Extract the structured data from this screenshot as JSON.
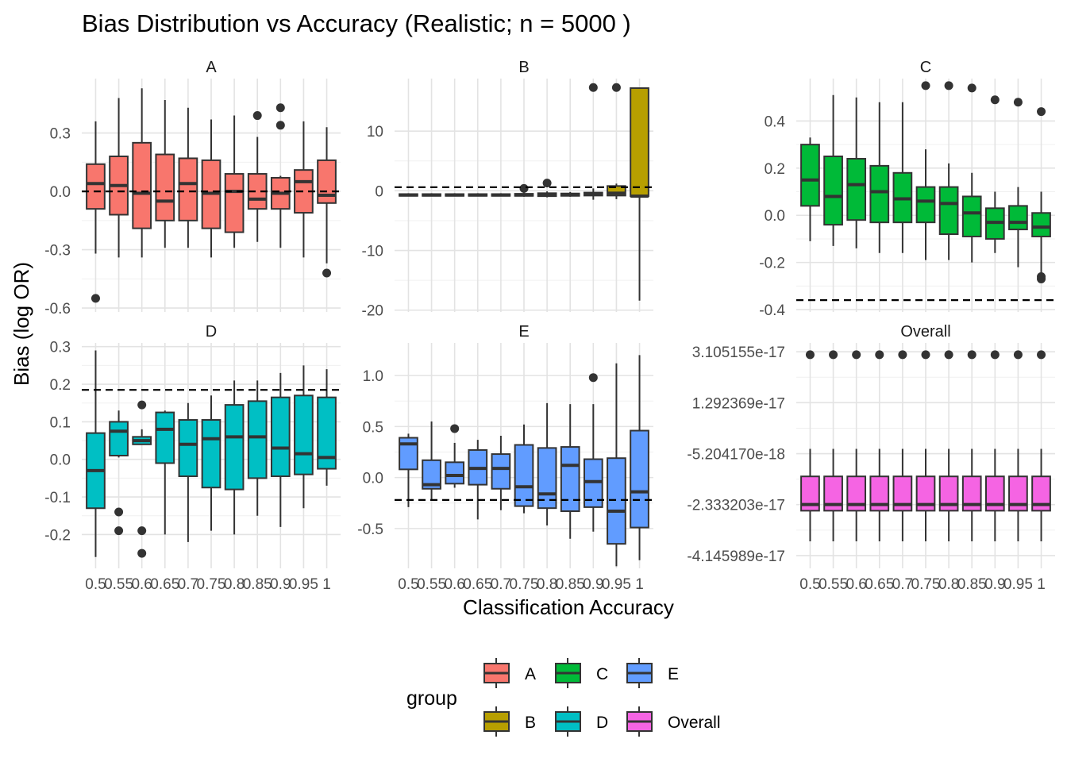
{
  "chart_data": {
    "type": "box",
    "title": "Bias Distribution vs Accuracy (Realistic; n = 5000 )",
    "xlabel": "Classification Accuracy",
    "ylabel": "Bias (log OR)",
    "x_categories": [
      "0.5",
      "0.55",
      "0.6",
      "0.65",
      "0.7",
      "0.75",
      "0.8",
      "0.85",
      "0.9",
      "0.95",
      "1"
    ],
    "legend": {
      "title": "group",
      "placement": "bottom",
      "items": [
        {
          "label": "A",
          "color": "#F8766D"
        },
        {
          "label": "C",
          "color": "#00BA38"
        },
        {
          "label": "E",
          "color": "#619CFF"
        },
        {
          "label": "B",
          "color": "#B79F00"
        },
        {
          "label": "D",
          "color": "#00BFC4"
        },
        {
          "label": "Overall",
          "color": "#F564E3"
        }
      ]
    },
    "panels": [
      {
        "label": "A",
        "color": "#F8766D",
        "ylim": [
          -0.62,
          0.58
        ],
        "yticks": [
          {
            "v": -0.6,
            "label": "-0.6"
          },
          {
            "v": -0.3,
            "label": "-0.3"
          },
          {
            "v": 0.0,
            "label": "0.0"
          },
          {
            "v": 0.3,
            "label": "0.3"
          }
        ],
        "hline": 0.0,
        "boxes": [
          {
            "min": -0.32,
            "q1": -0.09,
            "med": 0.04,
            "q3": 0.14,
            "max": 0.36,
            "out": [
              -0.55
            ]
          },
          {
            "min": -0.34,
            "q1": -0.12,
            "med": 0.03,
            "q3": 0.18,
            "max": 0.48,
            "out": []
          },
          {
            "min": -0.34,
            "q1": -0.19,
            "med": -0.01,
            "q3": 0.25,
            "max": 0.53,
            "out": []
          },
          {
            "min": -0.29,
            "q1": -0.15,
            "med": -0.05,
            "q3": 0.19,
            "max": 0.47,
            "out": []
          },
          {
            "min": -0.29,
            "q1": -0.15,
            "med": 0.04,
            "q3": 0.17,
            "max": 0.43,
            "out": []
          },
          {
            "min": -0.34,
            "q1": -0.19,
            "med": -0.01,
            "q3": 0.16,
            "max": 0.37,
            "out": []
          },
          {
            "min": -0.29,
            "q1": -0.21,
            "med": 0.0,
            "q3": 0.09,
            "max": 0.39,
            "out": []
          },
          {
            "min": -0.26,
            "q1": -0.09,
            "med": -0.04,
            "q3": 0.09,
            "max": 0.28,
            "out": [
              0.39
            ]
          },
          {
            "min": -0.29,
            "q1": -0.09,
            "med": -0.01,
            "q3": 0.07,
            "max": 0.08,
            "out": [
              0.43,
              0.34
            ]
          },
          {
            "min": -0.34,
            "q1": -0.11,
            "med": 0.05,
            "q3": 0.11,
            "max": 0.36,
            "out": []
          },
          {
            "min": -0.37,
            "q1": -0.06,
            "med": -0.02,
            "q3": 0.16,
            "max": 0.33,
            "out": [
              -0.42
            ]
          }
        ]
      },
      {
        "label": "B",
        "color": "#B79F00",
        "ylim": [
          -20.3,
          18.8
        ],
        "yticks": [
          {
            "v": -20,
            "label": "-20"
          },
          {
            "v": -10,
            "label": "-10"
          },
          {
            "v": 0,
            "label": "0"
          },
          {
            "v": 10,
            "label": "10"
          }
        ],
        "hline": 0.6,
        "boxes": [
          {
            "min": -0.9,
            "q1": -0.85,
            "med": -0.7,
            "q3": -0.55,
            "max": -0.4,
            "out": []
          },
          {
            "min": -0.9,
            "q1": -0.85,
            "med": -0.7,
            "q3": -0.55,
            "max": -0.4,
            "out": []
          },
          {
            "min": -0.9,
            "q1": -0.85,
            "med": -0.7,
            "q3": -0.55,
            "max": -0.4,
            "out": []
          },
          {
            "min": -0.9,
            "q1": -0.85,
            "med": -0.7,
            "q3": -0.55,
            "max": -0.4,
            "out": []
          },
          {
            "min": -0.9,
            "q1": -0.85,
            "med": -0.7,
            "q3": -0.55,
            "max": -0.4,
            "out": []
          },
          {
            "min": -1.0,
            "q1": -0.85,
            "med": -0.7,
            "q3": -0.5,
            "max": -0.3,
            "out": [
              0.4
            ]
          },
          {
            "min": -1.1,
            "q1": -0.9,
            "med": -0.65,
            "q3": -0.4,
            "max": -0.1,
            "out": [
              1.3
            ]
          },
          {
            "min": -1.0,
            "q1": -0.85,
            "med": -0.65,
            "q3": -0.45,
            "max": -0.2,
            "out": []
          },
          {
            "min": -1.5,
            "q1": -0.8,
            "med": -0.55,
            "q3": -0.3,
            "max": 0.4,
            "out": [
              17.3
            ]
          },
          {
            "min": -1.4,
            "q1": -0.8,
            "med": -0.4,
            "q3": 0.8,
            "max": 1.2,
            "out": [
              17.3
            ]
          },
          {
            "min": -18.4,
            "q1": -0.9,
            "med": -0.9,
            "q3": 17.2,
            "max": 17.2,
            "out": []
          }
        ]
      },
      {
        "label": "C",
        "color": "#00BA38",
        "ylim": [
          -0.41,
          0.58
        ],
        "yticks": [
          {
            "v": -0.4,
            "label": "-0.4"
          },
          {
            "v": -0.2,
            "label": "-0.2"
          },
          {
            "v": 0.0,
            "label": "0.0"
          },
          {
            "v": 0.2,
            "label": "0.2"
          },
          {
            "v": 0.4,
            "label": "0.4"
          }
        ],
        "hline": -0.36,
        "boxes": [
          {
            "min": -0.11,
            "q1": 0.04,
            "med": 0.15,
            "q3": 0.3,
            "max": 0.33,
            "out": []
          },
          {
            "min": -0.13,
            "q1": -0.04,
            "med": 0.08,
            "q3": 0.25,
            "max": 0.51,
            "out": []
          },
          {
            "min": -0.14,
            "q1": -0.02,
            "med": 0.13,
            "q3": 0.24,
            "max": 0.5,
            "out": []
          },
          {
            "min": -0.16,
            "q1": -0.03,
            "med": 0.1,
            "q3": 0.21,
            "max": 0.48,
            "out": []
          },
          {
            "min": -0.16,
            "q1": -0.03,
            "med": 0.07,
            "q3": 0.18,
            "max": 0.48,
            "out": []
          },
          {
            "min": -0.19,
            "q1": -0.03,
            "med": 0.06,
            "q3": 0.12,
            "max": 0.28,
            "out": [
              0.55
            ]
          },
          {
            "min": -0.19,
            "q1": -0.08,
            "med": 0.05,
            "q3": 0.12,
            "max": 0.22,
            "out": [
              0.55
            ]
          },
          {
            "min": -0.2,
            "q1": -0.09,
            "med": 0.01,
            "q3": 0.08,
            "max": 0.18,
            "out": [
              0.54
            ]
          },
          {
            "min": -0.16,
            "q1": -0.1,
            "med": -0.03,
            "q3": 0.03,
            "max": 0.1,
            "out": [
              0.49
            ]
          },
          {
            "min": -0.22,
            "q1": -0.06,
            "med": -0.03,
            "q3": 0.04,
            "max": 0.12,
            "out": [
              0.48
            ]
          },
          {
            "min": -0.25,
            "q1": -0.09,
            "med": -0.05,
            "q3": 0.01,
            "max": 0.1,
            "out": [
              0.44,
              -0.26,
              -0.27
            ]
          }
        ]
      },
      {
        "label": "D",
        "color": "#00BFC4",
        "ylim": [
          -0.29,
          0.31
        ],
        "yticks": [
          {
            "v": -0.2,
            "label": "-0.2"
          },
          {
            "v": -0.1,
            "label": "-0.1"
          },
          {
            "v": 0.0,
            "label": "0.0"
          },
          {
            "v": 0.1,
            "label": "0.1"
          },
          {
            "v": 0.2,
            "label": "0.2"
          },
          {
            "v": 0.3,
            "label": "0.3"
          }
        ],
        "hline": 0.185,
        "boxes": [
          {
            "min": -0.26,
            "q1": -0.13,
            "med": -0.03,
            "q3": 0.07,
            "max": 0.29,
            "out": []
          },
          {
            "min": 0.005,
            "q1": 0.01,
            "med": 0.075,
            "q3": 0.1,
            "max": 0.13,
            "out": [
              -0.14,
              -0.19
            ]
          },
          {
            "min": 0.04,
            "q1": 0.04,
            "med": 0.05,
            "q3": 0.06,
            "max": 0.08,
            "out": [
              0.145,
              -0.19,
              -0.25
            ]
          },
          {
            "min": -0.2,
            "q1": -0.01,
            "med": 0.08,
            "q3": 0.125,
            "max": 0.13,
            "out": []
          },
          {
            "min": -0.22,
            "q1": -0.045,
            "med": 0.04,
            "q3": 0.105,
            "max": 0.15,
            "out": []
          },
          {
            "min": -0.19,
            "q1": -0.075,
            "med": 0.055,
            "q3": 0.105,
            "max": 0.17,
            "out": []
          },
          {
            "min": -0.2,
            "q1": -0.08,
            "med": 0.06,
            "q3": 0.145,
            "max": 0.21,
            "out": []
          },
          {
            "min": -0.15,
            "q1": -0.05,
            "med": 0.06,
            "q3": 0.155,
            "max": 0.21,
            "out": []
          },
          {
            "min": -0.18,
            "q1": -0.045,
            "med": 0.03,
            "q3": 0.165,
            "max": 0.23,
            "out": []
          },
          {
            "min": -0.13,
            "q1": -0.04,
            "med": 0.015,
            "q3": 0.17,
            "max": 0.25,
            "out": []
          },
          {
            "min": -0.07,
            "q1": -0.025,
            "med": 0.005,
            "q3": 0.165,
            "max": 0.24,
            "out": []
          }
        ]
      },
      {
        "label": "E",
        "color": "#619CFF",
        "ylim": [
          -0.89,
          1.32
        ],
        "yticks": [
          {
            "v": -0.5,
            "label": "-0.5"
          },
          {
            "v": 0.0,
            "label": "0.0"
          },
          {
            "v": 0.5,
            "label": "0.5"
          },
          {
            "v": 1.0,
            "label": "1.0"
          }
        ],
        "hline": -0.22,
        "boxes": [
          {
            "min": -0.29,
            "q1": 0.08,
            "med": 0.33,
            "q3": 0.39,
            "max": 0.43,
            "out": []
          },
          {
            "min": -0.22,
            "q1": -0.11,
            "med": -0.07,
            "q3": 0.17,
            "max": 0.55,
            "out": []
          },
          {
            "min": -0.1,
            "q1": -0.06,
            "med": 0.02,
            "q3": 0.15,
            "max": 0.34,
            "out": [
              0.48
            ]
          },
          {
            "min": -0.41,
            "q1": -0.07,
            "med": 0.09,
            "q3": 0.27,
            "max": 0.37,
            "out": []
          },
          {
            "min": -0.32,
            "q1": -0.11,
            "med": 0.09,
            "q3": 0.23,
            "max": 0.41,
            "out": []
          },
          {
            "min": -0.35,
            "q1": -0.28,
            "med": -0.09,
            "q3": 0.32,
            "max": 0.52,
            "out": []
          },
          {
            "min": -0.47,
            "q1": -0.3,
            "med": -0.16,
            "q3": 0.29,
            "max": 0.73,
            "out": []
          },
          {
            "min": -0.6,
            "q1": -0.33,
            "med": 0.12,
            "q3": 0.3,
            "max": 0.72,
            "out": []
          },
          {
            "min": -0.53,
            "q1": -0.29,
            "med": -0.04,
            "q3": 0.18,
            "max": 0.72,
            "out": [
              0.98
            ]
          },
          {
            "min": -0.87,
            "q1": -0.65,
            "med": -0.33,
            "q3": 0.19,
            "max": 1.12,
            "out": []
          },
          {
            "min": -0.81,
            "q1": -0.49,
            "med": -0.14,
            "q3": 0.46,
            "max": 1.2,
            "out": []
          }
        ]
      },
      {
        "label": "Overall",
        "color": "#F564E3",
        "ylim": [
          -4.6e-17,
          3.42e-17
        ],
        "yticks": [
          {
            "v": -4.145989e-17,
            "label": "-4.145989e-17"
          },
          {
            "v": -2.333203e-17,
            "label": "-2.333203e-17"
          },
          {
            "v": -5.20417e-18,
            "label": "-5.204170e-18"
          },
          {
            "v": 1.292369e-17,
            "label": "1.292369e-17"
          },
          {
            "v": 3.105155e-17,
            "label": "3.105155e-17"
          }
        ],
        "hline": null,
        "boxes": [
          {
            "min": -3.64e-17,
            "q1": -2.55e-17,
            "med": -2.33e-17,
            "q3": -1.33e-17,
            "max": -3.5e-18,
            "out": [
              3e-17
            ]
          },
          {
            "min": -3.64e-17,
            "q1": -2.55e-17,
            "med": -2.33e-17,
            "q3": -1.33e-17,
            "max": -3.5e-18,
            "out": [
              3e-17
            ]
          },
          {
            "min": -3.64e-17,
            "q1": -2.55e-17,
            "med": -2.33e-17,
            "q3": -1.33e-17,
            "max": -3.5e-18,
            "out": [
              3e-17
            ]
          },
          {
            "min": -3.64e-17,
            "q1": -2.55e-17,
            "med": -2.33e-17,
            "q3": -1.33e-17,
            "max": -3.5e-18,
            "out": [
              3e-17
            ]
          },
          {
            "min": -3.64e-17,
            "q1": -2.55e-17,
            "med": -2.33e-17,
            "q3": -1.33e-17,
            "max": -3.5e-18,
            "out": [
              3e-17
            ]
          },
          {
            "min": -3.64e-17,
            "q1": -2.55e-17,
            "med": -2.33e-17,
            "q3": -1.33e-17,
            "max": -3.5e-18,
            "out": [
              3e-17
            ]
          },
          {
            "min": -3.64e-17,
            "q1": -2.55e-17,
            "med": -2.33e-17,
            "q3": -1.33e-17,
            "max": -3.5e-18,
            "out": [
              3e-17
            ]
          },
          {
            "min": -3.64e-17,
            "q1": -2.55e-17,
            "med": -2.33e-17,
            "q3": -1.33e-17,
            "max": -3.5e-18,
            "out": [
              3e-17
            ]
          },
          {
            "min": -3.64e-17,
            "q1": -2.55e-17,
            "med": -2.33e-17,
            "q3": -1.33e-17,
            "max": -3.5e-18,
            "out": [
              3e-17
            ]
          },
          {
            "min": -3.64e-17,
            "q1": -2.55e-17,
            "med": -2.33e-17,
            "q3": -1.33e-17,
            "max": -3.5e-18,
            "out": [
              3e-17
            ]
          },
          {
            "min": -3.64e-17,
            "q1": -2.55e-17,
            "med": -2.33e-17,
            "q3": -1.33e-17,
            "max": -3.5e-18,
            "out": [
              3e-17
            ]
          }
        ]
      }
    ]
  }
}
